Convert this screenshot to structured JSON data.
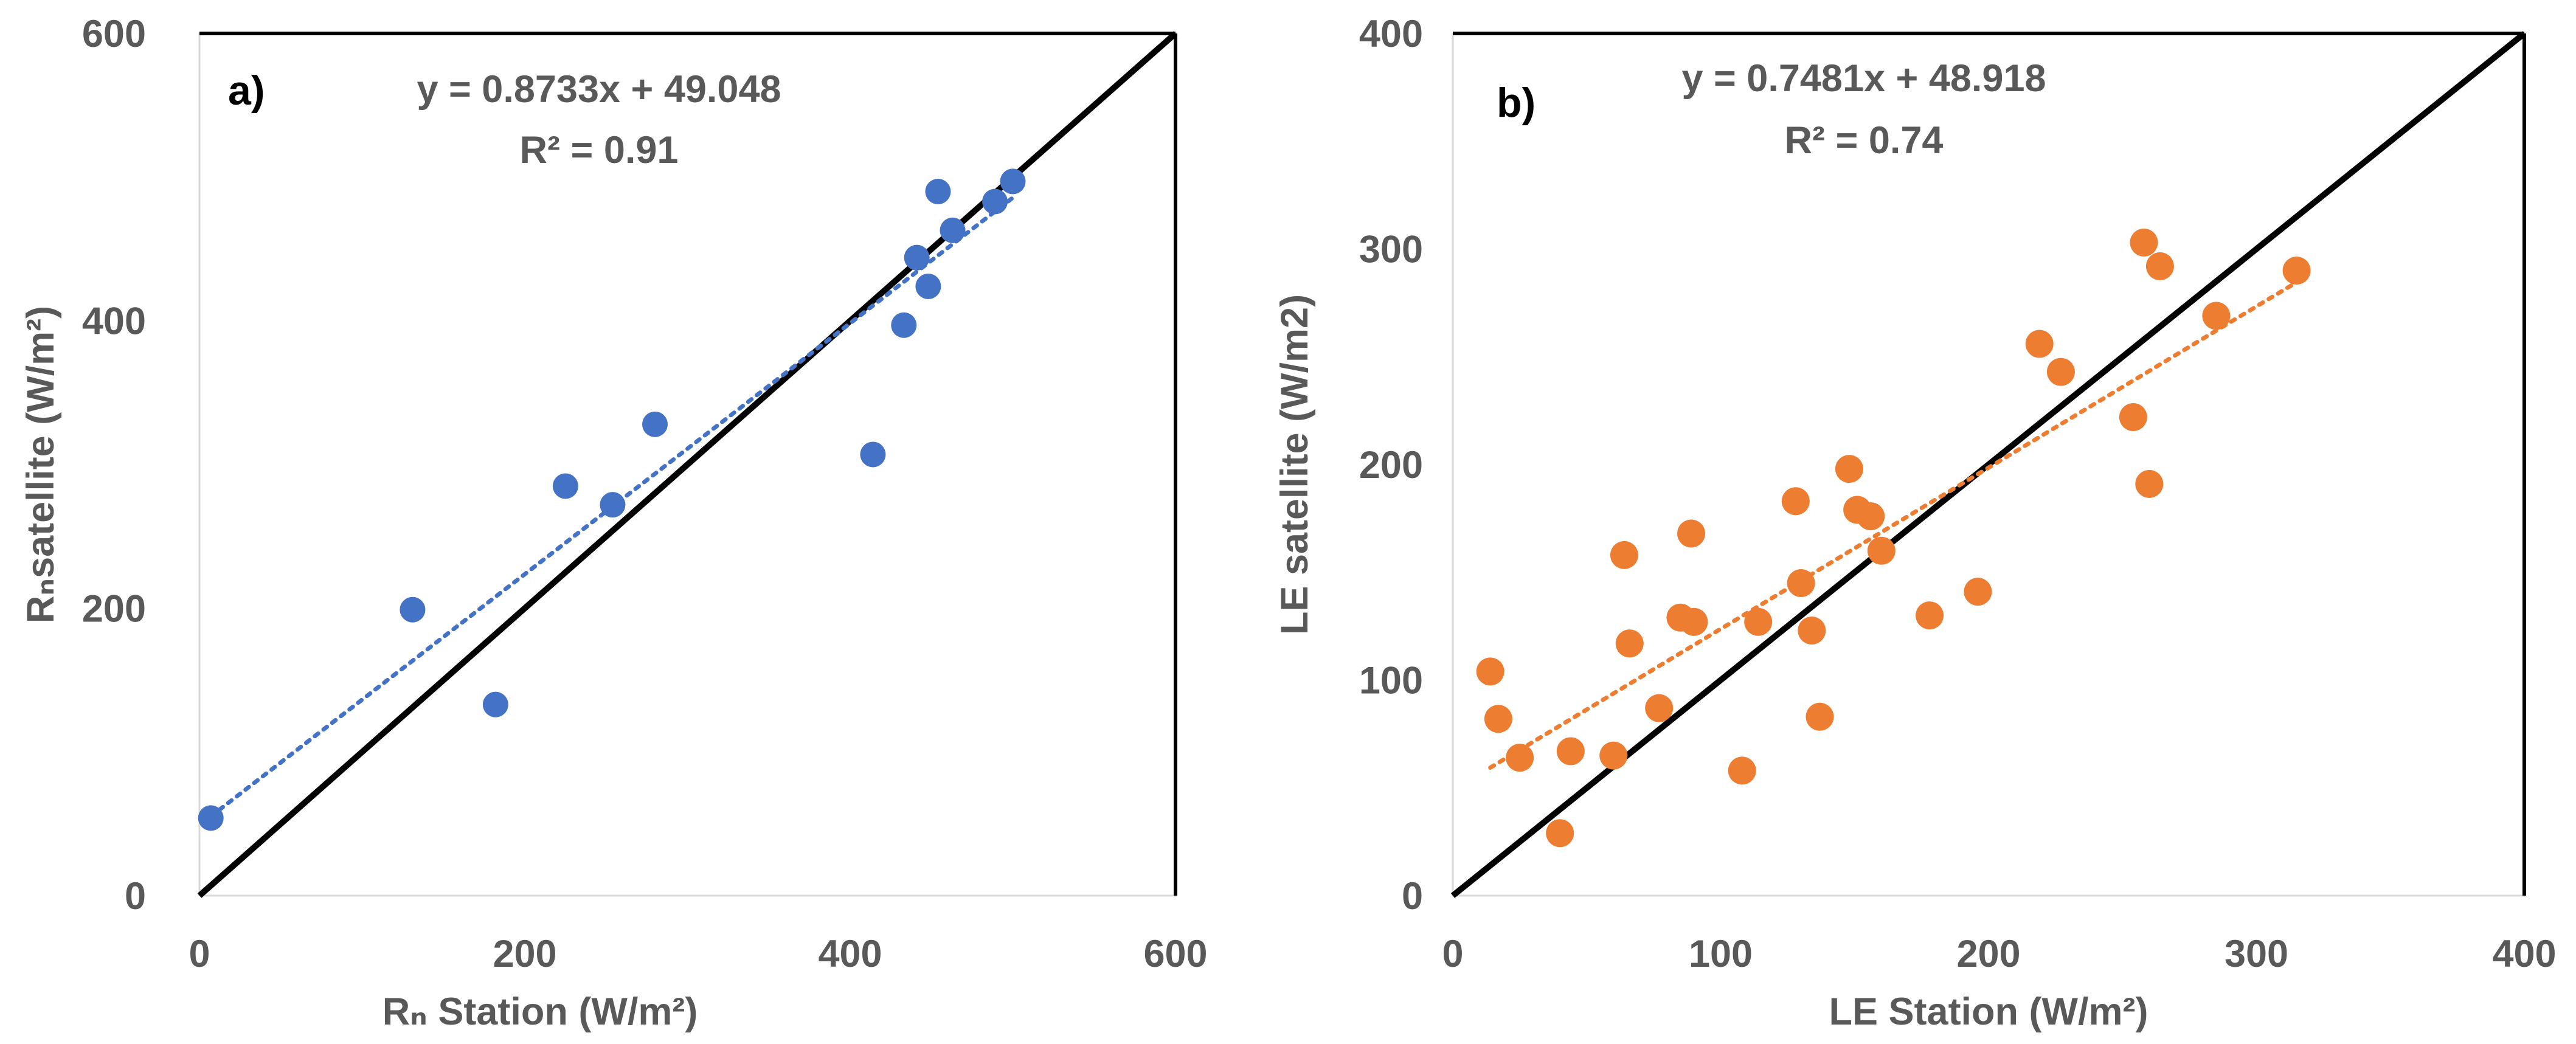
{
  "chart_data": [
    {
      "type": "scatter",
      "panel_label": "a)",
      "equation": "y = 0.8733x + 49.048",
      "r2_text": "R² = 0.91",
      "xlabel": "Rₙ Station (W/m²)",
      "ylabel": "Rₙsatellite (W/m²)",
      "xlim": [
        0,
        600
      ],
      "ylim": [
        0,
        600
      ],
      "xticks": [
        0,
        200,
        400,
        600
      ],
      "yticks": [
        0,
        200,
        400,
        600
      ],
      "xtick_labels": [
        "0",
        "200",
        "400",
        "600"
      ],
      "ytick_labels": [
        "0",
        "200",
        "400",
        "600"
      ],
      "color": "#4472C4",
      "points": [
        {
          "x": 7,
          "y": 54
        },
        {
          "x": 131,
          "y": 199
        },
        {
          "x": 182,
          "y": 133
        },
        {
          "x": 225,
          "y": 285
        },
        {
          "x": 254,
          "y": 272
        },
        {
          "x": 280,
          "y": 328
        },
        {
          "x": 414,
          "y": 307
        },
        {
          "x": 433,
          "y": 397
        },
        {
          "x": 441,
          "y": 444
        },
        {
          "x": 448,
          "y": 424
        },
        {
          "x": 454,
          "y": 490
        },
        {
          "x": 463,
          "y": 463
        },
        {
          "x": 489,
          "y": 483
        },
        {
          "x": 500,
          "y": 497
        }
      ],
      "trendline": {
        "slope": 0.8733,
        "intercept": 49.048,
        "x_range": [
          7,
          500
        ]
      },
      "reference_line": [
        0,
        600
      ]
    },
    {
      "type": "scatter",
      "panel_label": "b)",
      "equation": "y = 0.7481x + 48.918",
      "r2_text": "R² = 0.74",
      "xlabel": "LE Station (W/m²)",
      "ylabel": "LE satellite (W/m2)",
      "xlim": [
        0,
        400
      ],
      "ylim": [
        0,
        400
      ],
      "xticks": [
        0,
        100,
        200,
        300,
        400
      ],
      "yticks": [
        0,
        100,
        200,
        300,
        400
      ],
      "xtick_labels": [
        "0",
        "100",
        "200",
        "300",
        "400"
      ],
      "ytick_labels": [
        "0",
        "100",
        "200",
        "300",
        "400"
      ],
      "color": "#ED7D31",
      "points": [
        {
          "x": 14,
          "y": 104
        },
        {
          "x": 17,
          "y": 82
        },
        {
          "x": 25,
          "y": 64
        },
        {
          "x": 40,
          "y": 29
        },
        {
          "x": 44,
          "y": 67
        },
        {
          "x": 60,
          "y": 65
        },
        {
          "x": 64,
          "y": 158
        },
        {
          "x": 66,
          "y": 117
        },
        {
          "x": 77,
          "y": 87
        },
        {
          "x": 85,
          "y": 129
        },
        {
          "x": 89,
          "y": 168
        },
        {
          "x": 90,
          "y": 127
        },
        {
          "x": 108,
          "y": 58
        },
        {
          "x": 114,
          "y": 127
        },
        {
          "x": 128,
          "y": 183
        },
        {
          "x": 130,
          "y": 145
        },
        {
          "x": 134,
          "y": 123
        },
        {
          "x": 137,
          "y": 83
        },
        {
          "x": 148,
          "y": 198
        },
        {
          "x": 151,
          "y": 179
        },
        {
          "x": 156,
          "y": 176
        },
        {
          "x": 160,
          "y": 160
        },
        {
          "x": 178,
          "y": 130
        },
        {
          "x": 196,
          "y": 141
        },
        {
          "x": 219,
          "y": 256
        },
        {
          "x": 227,
          "y": 243
        },
        {
          "x": 254,
          "y": 222
        },
        {
          "x": 258,
          "y": 303
        },
        {
          "x": 260,
          "y": 191
        },
        {
          "x": 264,
          "y": 292
        },
        {
          "x": 285,
          "y": 269
        },
        {
          "x": 315,
          "y": 290
        }
      ],
      "trendline": {
        "slope": 0.7481,
        "intercept": 48.918,
        "x_range": [
          14,
          315
        ]
      },
      "reference_line": [
        0,
        400
      ]
    }
  ]
}
